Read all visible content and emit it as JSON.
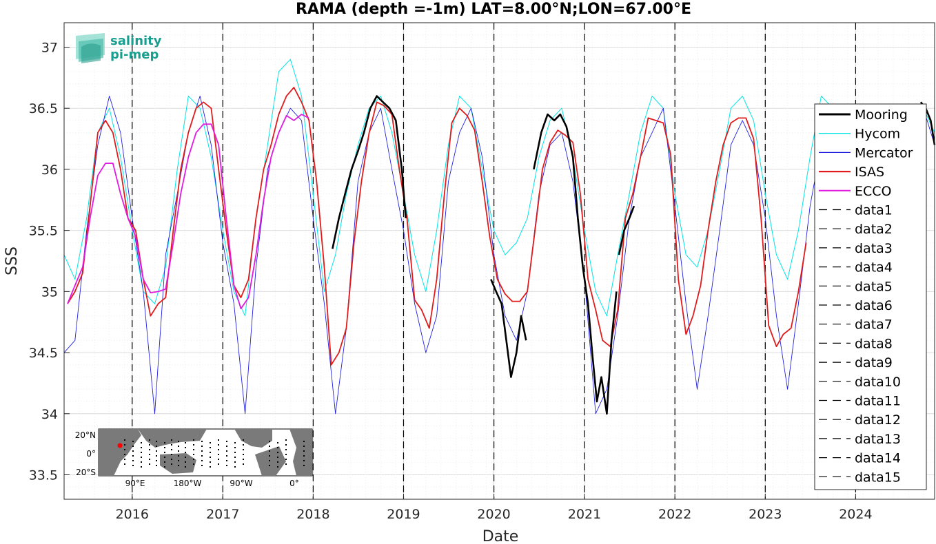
{
  "chart_data": {
    "type": "line",
    "title": "RAMA (depth =-1m) LAT=8.00°N;LON=67.00°E",
    "xlabel": "Date",
    "ylabel": "SSS",
    "xlim": [
      "2015-04-01",
      "2024-11-15"
    ],
    "ylim": [
      33.3,
      37.2
    ],
    "x_ticks": [
      "2016",
      "2017",
      "2018",
      "2019",
      "2020",
      "2021",
      "2022",
      "2023",
      "2024"
    ],
    "y_ticks": [
      "33.5",
      "34",
      "34.5",
      "35",
      "35.5",
      "36",
      "36.5",
      "37"
    ],
    "grid": true,
    "legend_position": "right",
    "series": [
      {
        "name": "Mooring",
        "color": "#000000",
        "segments": [
          {
            "x": [
              "2018-03-20",
              "2018-04-15",
              "2018-05-10",
              "2018-06-05",
              "2018-07-01",
              "2018-07-25",
              "2018-08-20",
              "2018-09-15",
              "2018-10-10",
              "2018-11-05",
              "2018-12-01",
              "2018-12-25",
              "2019-01-10"
            ],
            "y": [
              35.35,
              35.6,
              35.8,
              36.0,
              36.15,
              36.3,
              36.5,
              36.6,
              36.55,
              36.5,
              36.4,
              36.0,
              35.6
            ]
          },
          {
            "x": [
              "2019-12-20",
              "2020-01-10",
              "2020-02-01",
              "2020-02-20",
              "2020-03-10",
              "2020-04-01",
              "2020-04-20",
              "2020-05-10"
            ],
            "y": [
              35.1,
              35.0,
              34.9,
              34.6,
              34.3,
              34.5,
              34.8,
              34.6
            ]
          },
          {
            "x": [
              "2020-06-10",
              "2020-07-10",
              "2020-08-05",
              "2020-09-01",
              "2020-09-25",
              "2020-10-20",
              "2020-11-15",
              "2020-12-05"
            ],
            "y": [
              36.0,
              36.3,
              36.45,
              36.4,
              36.45,
              36.35,
              36.1,
              35.6
            ]
          },
          {
            "x": [
              "2020-12-05",
              "2020-12-25",
              "2021-01-15",
              "2021-02-01",
              "2021-02-20",
              "2021-03-10",
              "2021-04-01",
              "2021-04-20",
              "2021-05-10"
            ],
            "y": [
              35.6,
              35.2,
              34.9,
              34.5,
              34.1,
              34.3,
              34.0,
              34.6,
              35.0
            ]
          },
          {
            "x": [
              "2021-05-20",
              "2021-06-10",
              "2021-07-01",
              "2021-07-20"
            ],
            "y": [
              35.3,
              35.5,
              35.6,
              35.7
            ]
          },
          {
            "x": [
              "2024-09-20",
              "2024-10-10",
              "2024-10-30",
              "2024-11-15"
            ],
            "y": [
              36.55,
              36.5,
              36.4,
              36.2
            ]
          }
        ]
      },
      {
        "name": "Hycom",
        "color": "#00e5e5",
        "x": [
          "2015-04-01",
          "2015-05-15",
          "2015-07-01",
          "2015-08-15",
          "2015-10-01",
          "2015-11-15",
          "2016-01-01",
          "2016-02-15",
          "2016-04-01",
          "2016-05-15",
          "2016-07-01",
          "2016-08-15",
          "2016-10-01",
          "2016-11-15",
          "2017-01-01",
          "2017-02-15",
          "2017-04-01",
          "2017-05-15",
          "2017-07-01",
          "2017-08-15",
          "2017-10-01",
          "2017-11-15",
          "2018-01-01",
          "2018-02-15",
          "2018-04-01",
          "2018-05-15",
          "2018-07-01",
          "2018-08-15",
          "2018-10-01",
          "2018-11-15",
          "2019-01-01",
          "2019-02-15",
          "2019-04-01",
          "2019-05-15",
          "2019-07-01",
          "2019-08-15",
          "2019-10-01",
          "2019-11-15",
          "2020-01-01",
          "2020-02-15",
          "2020-04-01",
          "2020-05-15",
          "2020-07-01",
          "2020-08-15",
          "2020-10-01",
          "2020-11-15",
          "2021-01-01",
          "2021-02-15",
          "2021-04-01",
          "2021-05-15",
          "2021-07-01",
          "2021-08-15",
          "2021-10-01",
          "2021-11-15",
          "2022-01-01",
          "2022-02-15",
          "2022-04-01",
          "2022-05-15",
          "2022-07-01",
          "2022-08-15",
          "2022-10-01",
          "2022-11-15",
          "2023-01-01",
          "2023-02-15",
          "2023-04-01",
          "2023-05-15",
          "2023-07-01",
          "2023-08-15",
          "2023-10-01",
          "2023-11-15",
          "2024-01-01",
          "2024-02-15",
          "2024-04-01",
          "2024-05-15",
          "2024-07-01",
          "2024-08-15",
          "2024-10-01",
          "2024-11-15"
        ],
        "y": [
          35.3,
          35.1,
          35.6,
          36.3,
          36.5,
          36.1,
          35.5,
          35.0,
          34.9,
          35.2,
          36.0,
          36.6,
          36.5,
          36.1,
          35.5,
          35.0,
          34.8,
          35.6,
          36.2,
          36.8,
          36.9,
          36.6,
          35.8,
          35.0,
          35.3,
          35.8,
          36.2,
          36.5,
          36.6,
          36.3,
          35.8,
          35.3,
          35.0,
          35.5,
          36.2,
          36.6,
          36.5,
          36.0,
          35.5,
          35.3,
          35.4,
          35.6,
          36.1,
          36.4,
          36.5,
          36.1,
          35.5,
          35.0,
          34.8,
          35.3,
          35.8,
          36.3,
          36.6,
          36.5,
          35.8,
          35.3,
          35.2,
          35.5,
          36.0,
          36.5,
          36.6,
          36.4,
          35.8,
          35.3,
          35.1,
          35.5,
          36.1,
          36.6,
          36.5,
          36.2,
          35.8,
          35.6,
          35.5,
          35.8,
          36.2,
          36.5,
          36.5,
          36.3
        ]
      },
      {
        "name": "Mercator",
        "color": "#1f1fe0",
        "x": [
          "2015-04-01",
          "2015-05-15",
          "2015-07-01",
          "2015-08-15",
          "2015-10-01",
          "2015-11-15",
          "2016-01-01",
          "2016-02-15",
          "2016-04-01",
          "2016-05-15",
          "2016-07-01",
          "2016-08-15",
          "2016-10-01",
          "2016-11-15",
          "2017-01-01",
          "2017-02-15",
          "2017-04-01",
          "2017-05-15",
          "2017-07-01",
          "2017-08-15",
          "2017-10-01",
          "2017-11-15",
          "2018-01-01",
          "2018-02-15",
          "2018-04-01",
          "2018-05-15",
          "2018-07-01",
          "2018-08-15",
          "2018-10-01",
          "2018-11-15",
          "2019-01-01",
          "2019-02-15",
          "2019-04-01",
          "2019-05-15",
          "2019-07-01",
          "2019-08-15",
          "2019-10-01",
          "2019-11-15",
          "2020-01-01",
          "2020-02-15",
          "2020-04-01",
          "2020-05-15",
          "2020-07-01",
          "2020-08-15",
          "2020-10-01",
          "2020-11-15",
          "2021-01-01",
          "2021-02-15",
          "2021-04-01",
          "2021-05-15",
          "2021-07-01",
          "2021-08-15",
          "2021-10-01",
          "2021-11-15",
          "2022-01-01",
          "2022-02-15",
          "2022-04-01",
          "2022-05-15",
          "2022-07-01",
          "2022-08-15",
          "2022-10-01",
          "2022-11-15",
          "2023-01-01",
          "2023-02-15",
          "2023-04-01",
          "2023-05-15",
          "2023-07-01",
          "2023-08-15",
          "2023-10-01",
          "2023-11-15",
          "2024-01-01",
          "2024-02-15",
          "2024-04-01",
          "2024-05-15",
          "2024-07-01",
          "2024-08-15",
          "2024-10-01",
          "2024-11-15"
        ],
        "y": [
          34.5,
          34.6,
          35.5,
          36.2,
          36.6,
          36.3,
          35.6,
          35.0,
          34.0,
          35.3,
          35.8,
          36.3,
          36.6,
          36.2,
          35.4,
          34.9,
          34.0,
          35.2,
          36.0,
          36.3,
          36.5,
          36.4,
          35.6,
          34.9,
          34.0,
          34.7,
          35.9,
          36.3,
          36.5,
          36.0,
          35.5,
          34.9,
          34.5,
          34.8,
          35.9,
          36.3,
          36.5,
          36.1,
          35.3,
          34.8,
          34.6,
          35.0,
          35.8,
          36.2,
          36.3,
          35.9,
          35.1,
          34.0,
          34.2,
          34.8,
          35.6,
          36.1,
          36.3,
          36.5,
          35.7,
          34.9,
          34.2,
          34.8,
          35.5,
          36.2,
          36.4,
          36.2,
          35.6,
          34.8,
          34.2,
          34.9,
          35.7,
          36.2,
          36.3,
          36.0,
          35.4,
          35.2,
          35.3,
          35.7,
          36.0,
          36.3,
          36.5,
          36.2
        ]
      },
      {
        "name": "ISAS",
        "color": "#e01b1b",
        "x": [
          "2015-04-15",
          "2015-05-15",
          "2015-06-15",
          "2015-07-15",
          "2015-08-15",
          "2015-09-15",
          "2015-10-15",
          "2015-11-15",
          "2015-12-15",
          "2016-01-15",
          "2016-02-15",
          "2016-03-15",
          "2016-04-15",
          "2016-05-15",
          "2016-06-15",
          "2016-07-15",
          "2016-08-15",
          "2016-09-15",
          "2016-10-15",
          "2016-11-15",
          "2016-12-15",
          "2017-01-15",
          "2017-02-15",
          "2017-03-15",
          "2017-04-15",
          "2017-05-15",
          "2017-06-15",
          "2017-07-15",
          "2017-08-15",
          "2017-09-15",
          "2017-10-15",
          "2017-11-15",
          "2017-12-15",
          "2018-01-15",
          "2018-02-15",
          "2018-03-15",
          "2018-04-15",
          "2018-05-15",
          "2018-06-15",
          "2018-07-15",
          "2018-08-15",
          "2018-09-15",
          "2018-10-15",
          "2018-11-15",
          "2018-12-15",
          "2019-01-15",
          "2019-02-15",
          "2019-03-15",
          "2019-04-15",
          "2019-05-15",
          "2019-06-15",
          "2019-07-15",
          "2019-08-15",
          "2019-09-15",
          "2019-10-15",
          "2019-11-15",
          "2019-12-15",
          "2020-01-15",
          "2020-02-15",
          "2020-03-15",
          "2020-04-15",
          "2020-05-15",
          "2020-06-15",
          "2020-07-15",
          "2020-08-15",
          "2020-09-15",
          "2020-10-15",
          "2020-11-15",
          "2020-12-15",
          "2021-01-15",
          "2021-02-15",
          "2021-03-15",
          "2021-04-15",
          "2021-05-15",
          "2021-06-15",
          "2021-07-15",
          "2021-08-15",
          "2021-09-15",
          "2021-10-15",
          "2021-11-15",
          "2021-12-15",
          "2022-01-15",
          "2022-02-15",
          "2022-03-15",
          "2022-04-15",
          "2022-05-15",
          "2022-06-15",
          "2022-07-15",
          "2022-08-15",
          "2022-09-15",
          "2022-10-15",
          "2022-11-15",
          "2022-12-15",
          "2023-01-15",
          "2023-02-15",
          "2023-03-15",
          "2023-04-15",
          "2023-05-15",
          "2023-06-15"
        ],
        "y": [
          34.9,
          35.0,
          35.15,
          35.7,
          36.3,
          36.4,
          36.3,
          36.0,
          35.6,
          35.5,
          35.1,
          34.8,
          34.9,
          34.95,
          35.5,
          36.0,
          36.3,
          36.5,
          36.55,
          36.5,
          36.0,
          35.5,
          35.05,
          34.95,
          35.1,
          35.6,
          36.0,
          36.2,
          36.45,
          36.6,
          36.67,
          36.55,
          36.4,
          35.9,
          35.2,
          34.4,
          34.5,
          34.7,
          35.4,
          35.9,
          36.3,
          36.55,
          36.52,
          36.45,
          36.0,
          35.6,
          34.93,
          34.85,
          34.7,
          35.1,
          35.8,
          36.38,
          36.5,
          36.44,
          36.32,
          35.9,
          35.45,
          35.1,
          34.98,
          34.92,
          34.92,
          35.0,
          35.5,
          36.0,
          36.22,
          36.32,
          36.28,
          36.22,
          35.8,
          35.1,
          34.85,
          34.6,
          34.55,
          34.85,
          35.6,
          35.8,
          36.1,
          36.42,
          36.4,
          36.38,
          36.12,
          35.1,
          34.65,
          34.8,
          35.05,
          35.5,
          35.9,
          36.2,
          36.38,
          36.42,
          36.42,
          36.25,
          35.6,
          34.72,
          34.55,
          34.65,
          34.7,
          35.0,
          35.4
        ]
      },
      {
        "name": "ECCO",
        "color": "#e01be0",
        "x": [
          "2015-04-15",
          "2015-05-15",
          "2015-06-15",
          "2015-07-15",
          "2015-08-15",
          "2015-09-15",
          "2015-10-15",
          "2015-11-15",
          "2015-12-15",
          "2016-01-15",
          "2016-02-15",
          "2016-03-15",
          "2016-04-15",
          "2016-05-15",
          "2016-06-15",
          "2016-07-15",
          "2016-08-15",
          "2016-09-15",
          "2016-10-15",
          "2016-11-15",
          "2016-12-15",
          "2017-01-15",
          "2017-02-15",
          "2017-03-15",
          "2017-04-15",
          "2017-05-15",
          "2017-06-15",
          "2017-07-15",
          "2017-08-15",
          "2017-09-15",
          "2017-10-15",
          "2017-11-15",
          "2017-12-15"
        ],
        "y": [
          34.9,
          35.05,
          35.2,
          35.6,
          35.95,
          36.05,
          36.05,
          35.8,
          35.6,
          35.45,
          35.1,
          34.99,
          35.0,
          35.02,
          35.4,
          35.8,
          36.1,
          36.3,
          36.37,
          36.37,
          36.2,
          35.6,
          35.05,
          34.86,
          34.95,
          35.3,
          35.75,
          36.1,
          36.3,
          36.44,
          36.4,
          36.45,
          36.42
        ]
      }
    ],
    "vertical_dashed_lines": [
      "2016-01-01",
      "2017-01-01",
      "2018-01-01",
      "2019-01-01",
      "2020-01-01",
      "2021-01-01",
      "2022-01-01",
      "2023-01-01",
      "2024-01-01"
    ],
    "legend_entries": [
      "Mooring",
      "Hycom",
      "Mercator",
      "ISAS",
      "ECCO",
      "data1",
      "data2",
      "data3",
      "data4",
      "data5",
      "data6",
      "data7",
      "data8",
      "data9",
      "data10",
      "data11",
      "data12",
      "data13",
      "data14",
      "data15"
    ]
  },
  "logo": {
    "line1": "salinity",
    "line2": "pi-mep",
    "color": "#1a9e8f"
  },
  "inset_map": {
    "lat_labels": [
      "20°N",
      "0°",
      "20°S"
    ],
    "lon_labels": [
      "90°E",
      "180°W",
      "90°W",
      "0°"
    ],
    "marker_color": "#ff0000"
  }
}
